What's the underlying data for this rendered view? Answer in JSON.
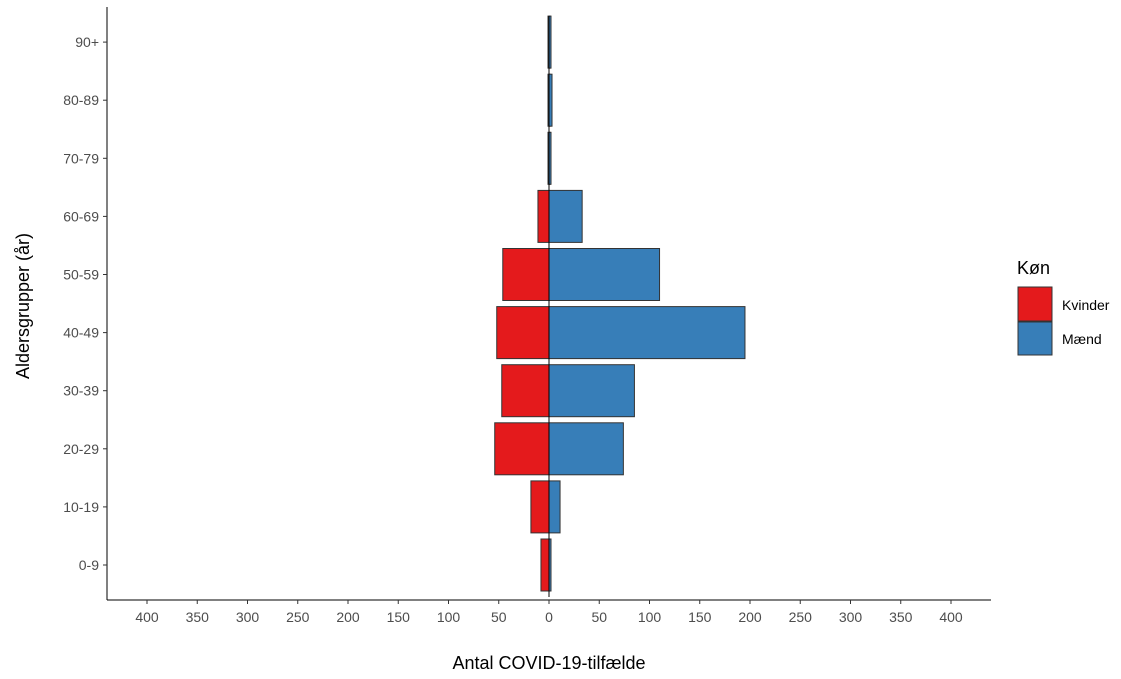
{
  "chart_data": {
    "type": "bar",
    "orientation": "horizontal",
    "layout": "population-pyramid",
    "categories": [
      "0-9",
      "10-19",
      "20-29",
      "30-39",
      "40-49",
      "50-59",
      "60-69",
      "70-79",
      "80-89",
      "90+"
    ],
    "series": [
      {
        "name": "Kvinder",
        "side": "left",
        "color": "#E41A1C",
        "values": [
          8,
          18,
          54,
          47,
          52,
          46,
          11,
          1,
          1,
          1
        ]
      },
      {
        "name": "Mænd",
        "side": "right",
        "color": "#377EB8",
        "values": [
          1,
          11,
          74,
          85,
          195,
          110,
          33,
          2,
          3,
          1
        ]
      }
    ],
    "xlabel": "Antal COVID-19-tilfælde",
    "ylabel": "Aldersgrupper (år)",
    "xlim": [
      -440,
      440
    ],
    "xticks": [
      -400,
      -350,
      -300,
      -250,
      -200,
      -150,
      -100,
      -50,
      0,
      50,
      100,
      150,
      200,
      250,
      300,
      350,
      400
    ],
    "xtick_labels": [
      "400",
      "350",
      "300",
      "250",
      "200",
      "150",
      "100",
      "50",
      "0",
      "50",
      "100",
      "150",
      "200",
      "250",
      "300",
      "350",
      "400"
    ],
    "legend": {
      "title": "Køn",
      "position": "right"
    },
    "grid": false
  }
}
